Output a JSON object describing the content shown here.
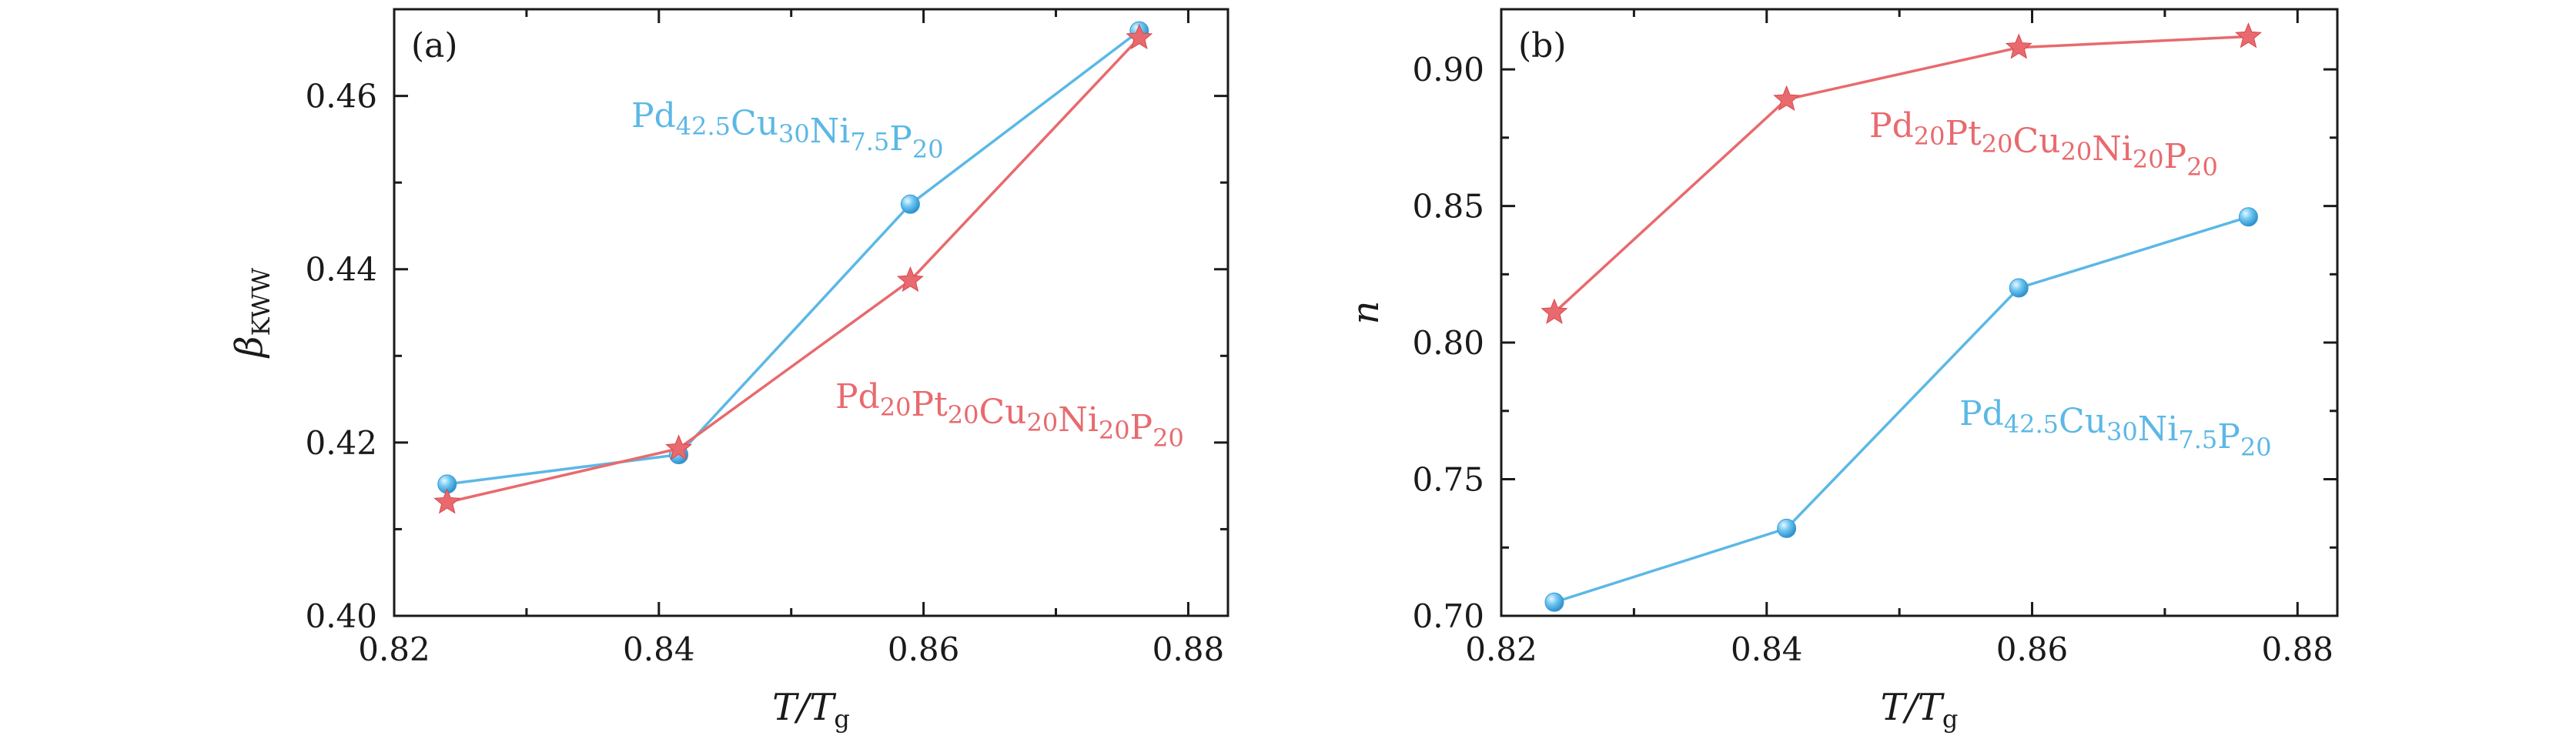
{
  "colors": {
    "series_a": "#5bb8e6",
    "series_b": "#e86a6e",
    "axis": "#1a1a1a"
  },
  "chart_data": [
    {
      "type": "line",
      "panel_label": "(a)",
      "xlabel": {
        "main": "T/T",
        "sub": "g"
      },
      "ylabel": {
        "main": "β",
        "sub": "KWW"
      },
      "xlim": [
        0.82,
        0.883
      ],
      "ylim": [
        0.4,
        0.47
      ],
      "xticks": [
        "0.82",
        "0.84",
        "0.86",
        "0.88"
      ],
      "yticks": [
        "0.40",
        "0.42",
        "0.44",
        "0.46"
      ],
      "series": [
        {
          "name": "Pd42.5Cu30Ni7.5P20",
          "color": "#5bb8e6",
          "marker": "circle",
          "x": [
            0.824,
            0.8415,
            0.859,
            0.8763
          ],
          "y": [
            0.4152,
            0.4186,
            0.4475,
            0.4675
          ]
        },
        {
          "name": "Pd20Pt20Cu20Ni20P20",
          "color": "#e86a6e",
          "marker": "star",
          "x": [
            0.824,
            0.8415,
            0.859,
            0.8763
          ],
          "y": [
            0.4131,
            0.4193,
            0.4387,
            0.4667
          ]
        }
      ],
      "annotations": [
        {
          "series": 0,
          "parts": [
            [
              "Pd",
              "42.5"
            ],
            [
              "Cu",
              "30"
            ],
            [
              "Ni",
              "7.5"
            ],
            [
              "P",
              "20"
            ]
          ]
        },
        {
          "series": 1,
          "parts": [
            [
              "Pd",
              "20"
            ],
            [
              "Pt",
              "20"
            ],
            [
              "Cu",
              "20"
            ],
            [
              "Ni",
              "20"
            ],
            [
              "P",
              "20"
            ]
          ]
        }
      ]
    },
    {
      "type": "line",
      "panel_label": "(b)",
      "xlabel": {
        "main": "T/T",
        "sub": "g"
      },
      "ylabel": {
        "main": "n",
        "sub": ""
      },
      "xlim": [
        0.82,
        0.883
      ],
      "ylim": [
        0.7,
        0.922
      ],
      "xticks": [
        "0.82",
        "0.84",
        "0.86",
        "0.88"
      ],
      "yticks": [
        "0.70",
        "0.75",
        "0.80",
        "0.85",
        "0.90"
      ],
      "series": [
        {
          "name": "Pd20Pt20Cu20Ni20P20",
          "color": "#e86a6e",
          "marker": "star",
          "x": [
            0.824,
            0.8415,
            0.859,
            0.8763
          ],
          "y": [
            0.811,
            0.889,
            0.908,
            0.912
          ]
        },
        {
          "name": "Pd42.5Cu30Ni7.5P20",
          "color": "#5bb8e6",
          "marker": "circle",
          "x": [
            0.824,
            0.8415,
            0.859,
            0.8763
          ],
          "y": [
            0.705,
            0.732,
            0.82,
            0.846
          ]
        }
      ],
      "annotations": [
        {
          "series": 0,
          "parts": [
            [
              "Pd",
              "20"
            ],
            [
              "Pt",
              "20"
            ],
            [
              "Cu",
              "20"
            ],
            [
              "Ni",
              "20"
            ],
            [
              "P",
              "20"
            ]
          ]
        },
        {
          "series": 1,
          "parts": [
            [
              "Pd",
              "42.5"
            ],
            [
              "Cu",
              "30"
            ],
            [
              "Ni",
              "7.5"
            ],
            [
              "P",
              "20"
            ]
          ]
        }
      ]
    }
  ]
}
